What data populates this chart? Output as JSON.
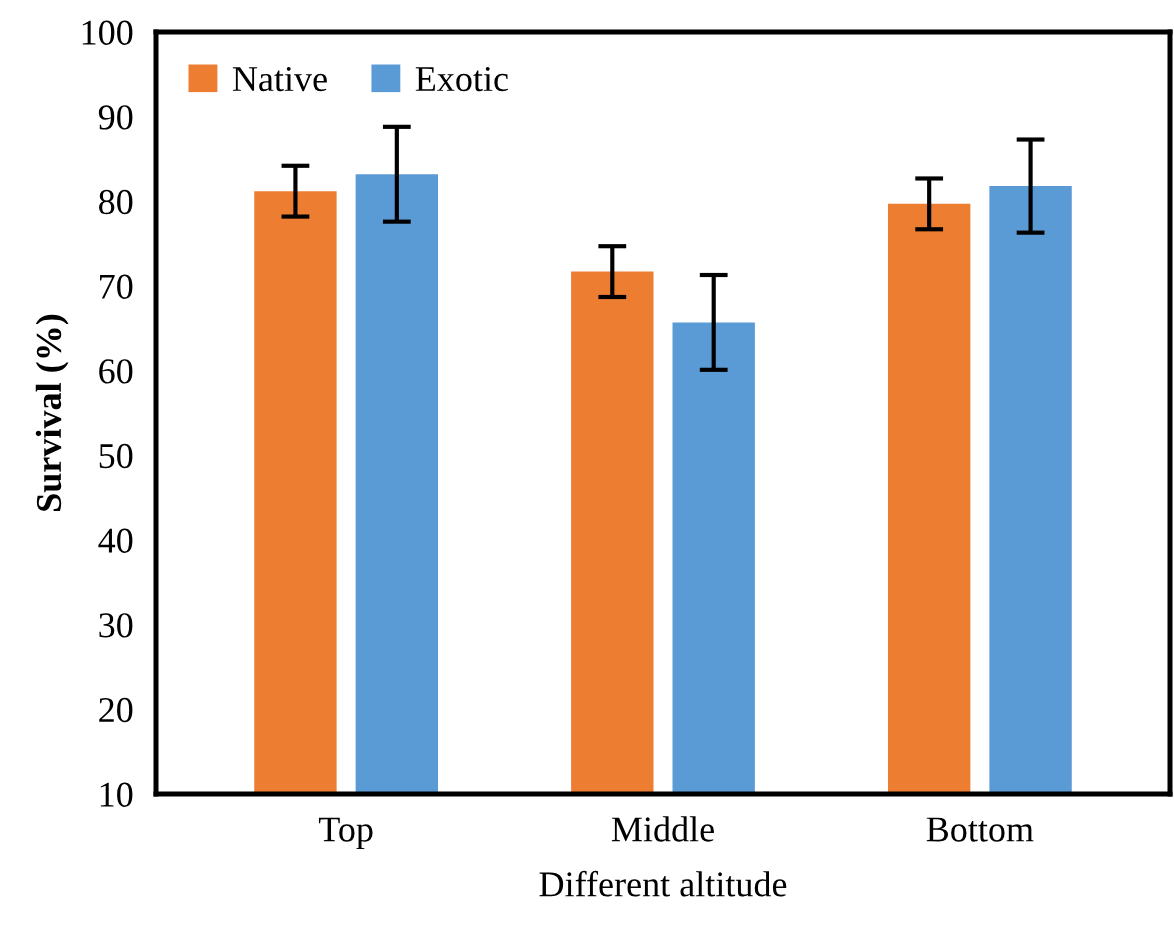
{
  "chart_data": {
    "type": "bar",
    "xlabel": "Different altitude",
    "ylabel": "Survival (%)",
    "categories": [
      "Top",
      "Middle",
      "Bottom"
    ],
    "series": [
      {
        "name": "Native",
        "color": "#ed7d31",
        "values": [
          81.2,
          71.7,
          79.7
        ],
        "errors": [
          3.0,
          3.0,
          3.0
        ]
      },
      {
        "name": "Exotic",
        "color": "#5b9bd5",
        "values": [
          83.2,
          65.7,
          81.8
        ],
        "errors": [
          5.6,
          5.6,
          5.5
        ]
      }
    ],
    "ylim": [
      10,
      100
    ],
    "yticks": [
      10,
      20,
      30,
      40,
      50,
      60,
      70,
      80,
      90,
      100
    ],
    "grid": false,
    "legend": "top left"
  }
}
